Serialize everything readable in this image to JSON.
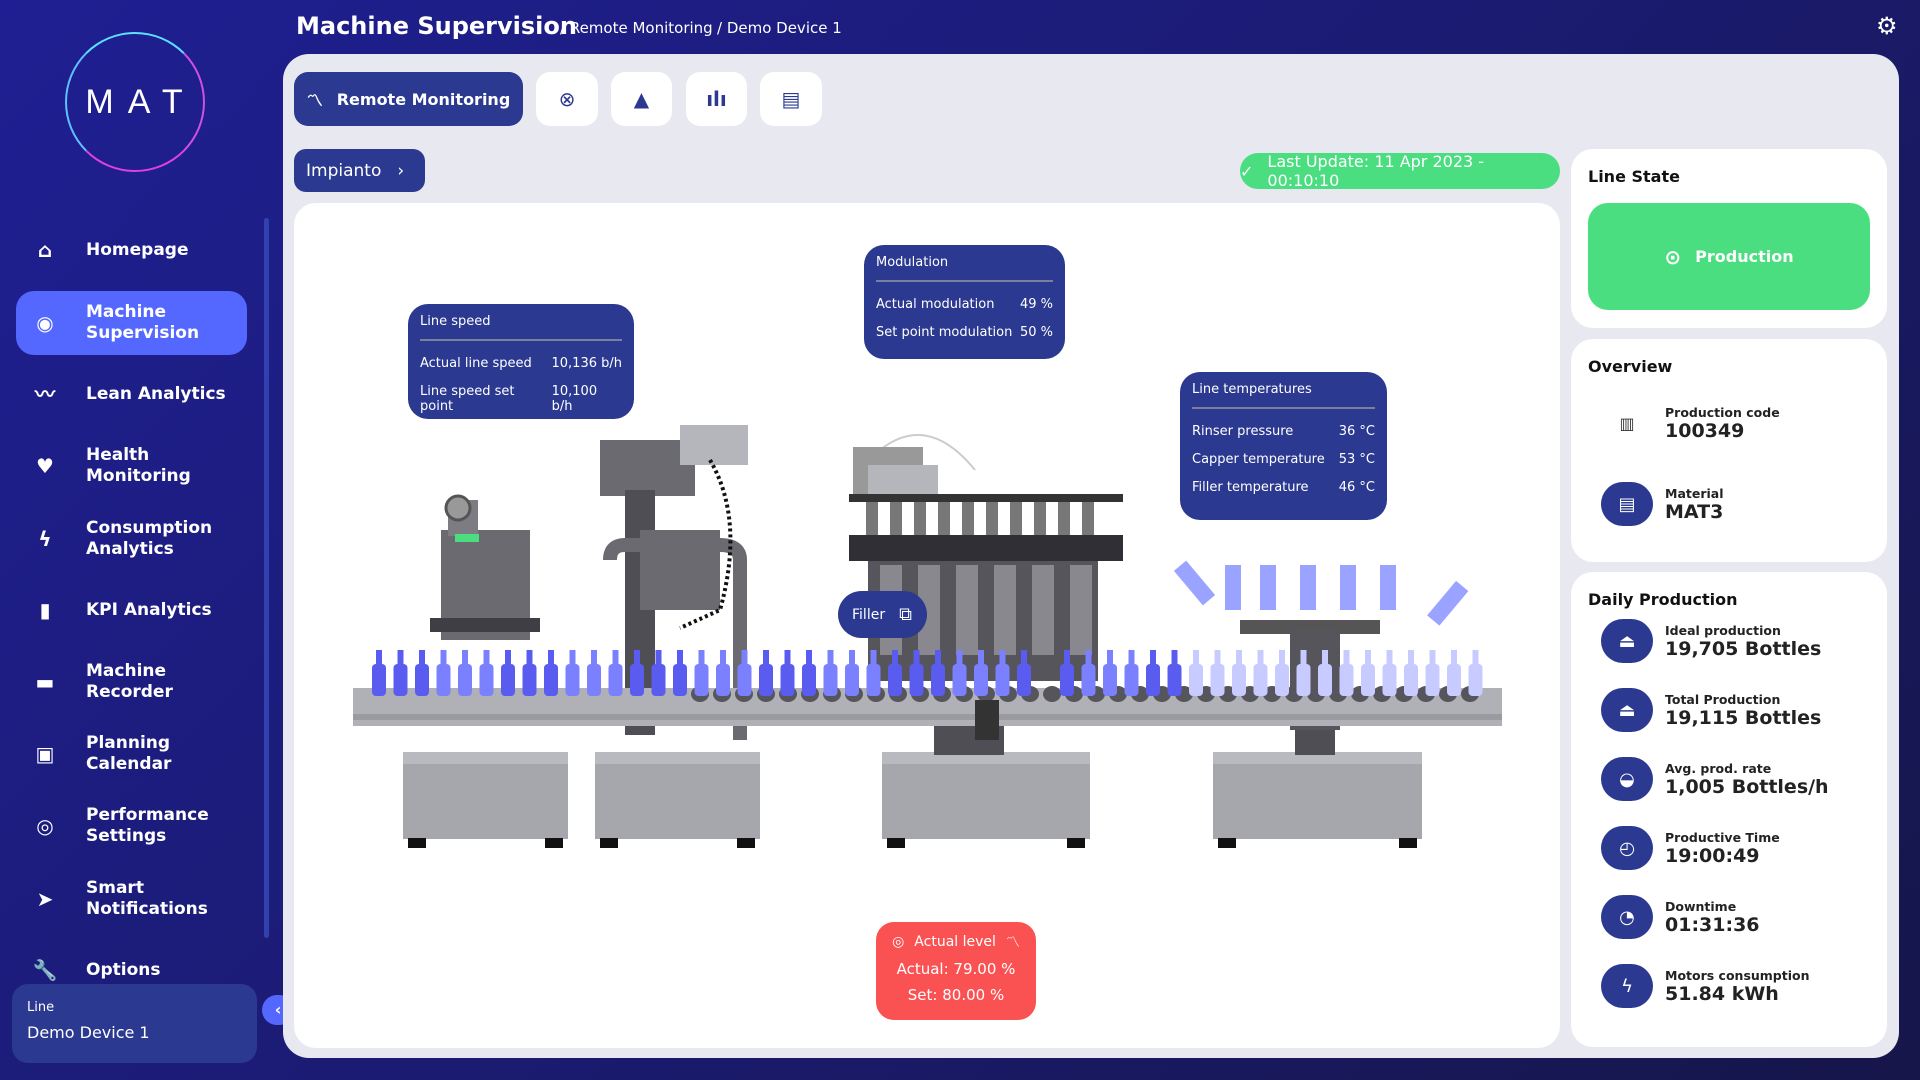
{
  "logo": "MAT",
  "header": {
    "title": "Machine Supervision",
    "crumbs": [
      "/ Remote Monitoring",
      "/ Demo Device 1"
    ],
    "settings_icon": "gear-icon"
  },
  "sidebar": {
    "items": [
      {
        "label": "Homepage",
        "icon": "home-icon",
        "glyph": "⌂"
      },
      {
        "label": "Machine Supervision",
        "icon": "eye-icon",
        "glyph": "◉",
        "active": true
      },
      {
        "label": "Lean Analytics",
        "icon": "trend-icon",
        "glyph": "〰"
      },
      {
        "label": "Health Monitoring",
        "icon": "heart-icon",
        "glyph": "♥"
      },
      {
        "label": "Consumption Analytics",
        "icon": "bolt-icon",
        "glyph": "ϟ"
      },
      {
        "label": "KPI Analytics",
        "icon": "bar-chart-icon",
        "glyph": "▮"
      },
      {
        "label": "Machine Recorder",
        "icon": "recorder-icon",
        "glyph": "▬"
      },
      {
        "label": "Planning Calendar",
        "icon": "calendar-icon",
        "glyph": "▣"
      },
      {
        "label": "Performance Settings",
        "icon": "stopwatch-icon",
        "glyph": "◎"
      },
      {
        "label": "Smart Notifications",
        "icon": "send-icon",
        "glyph": "➤"
      },
      {
        "label": "Options",
        "icon": "wrench-icon",
        "glyph": "🔧"
      }
    ],
    "line_label": "Line",
    "line_value": "Demo Device 1"
  },
  "tabs": {
    "primary": "Remote Monitoring",
    "icons": [
      "close-circle-icon",
      "warning-icon",
      "bar-chart-icon",
      "clipboard-icon"
    ]
  },
  "impianto": "Impianto",
  "last_update": "Last Update: 11 Apr 2023 - 00:10:10",
  "panels": {
    "line_speed": {
      "title": "Line speed",
      "rows": [
        [
          "Actual line speed",
          "10,136 b/h"
        ],
        [
          "Line speed set point",
          "10,100 b/h"
        ]
      ]
    },
    "modulation": {
      "title": "Modulation",
      "rows": [
        [
          "Actual modulation",
          "49 %"
        ],
        [
          "Set point modulation",
          "50 %"
        ]
      ]
    },
    "temperatures": {
      "title": "Line temperatures",
      "rows": [
        [
          "Rinser pressure",
          "36 °C"
        ],
        [
          "Capper temperature",
          "53 °C"
        ],
        [
          "Filler temperature",
          "46 °C"
        ]
      ]
    },
    "filler": "Filler",
    "level": {
      "title": "Actual level",
      "actual": "Actual: 79.00 %",
      "set": "Set: 80.00 %"
    }
  },
  "line_state": {
    "title": "Line State",
    "state": "Production",
    "color": "#4ade80"
  },
  "overview": {
    "title": "Overview",
    "items": [
      {
        "label": "Production code",
        "value": "100349"
      },
      {
        "label": "Material",
        "value": "MAT3"
      }
    ]
  },
  "daily": {
    "title": "Daily Production",
    "items": [
      {
        "label": "Ideal production",
        "value": "19,705 Bottles",
        "icon": "weight-icon"
      },
      {
        "label": "Total Production",
        "value": "19,115 Bottles",
        "icon": "weight-icon"
      },
      {
        "label": "Avg. prod. rate",
        "value": "1,005 Bottles/h",
        "icon": "gauge-icon"
      },
      {
        "label": "Productive Time",
        "value": "19:00:49",
        "icon": "clock-icon"
      },
      {
        "label": "Downtime",
        "value": "01:31:36",
        "icon": "downtime-icon"
      },
      {
        "label": "Motors consumption",
        "value": "51.84 kWh",
        "icon": "bolt-icon"
      }
    ]
  },
  "colors": {
    "brand": "#2b3990",
    "accent": "#5468ff",
    "ok": "#4ade80",
    "alarm": "#fa5252"
  }
}
